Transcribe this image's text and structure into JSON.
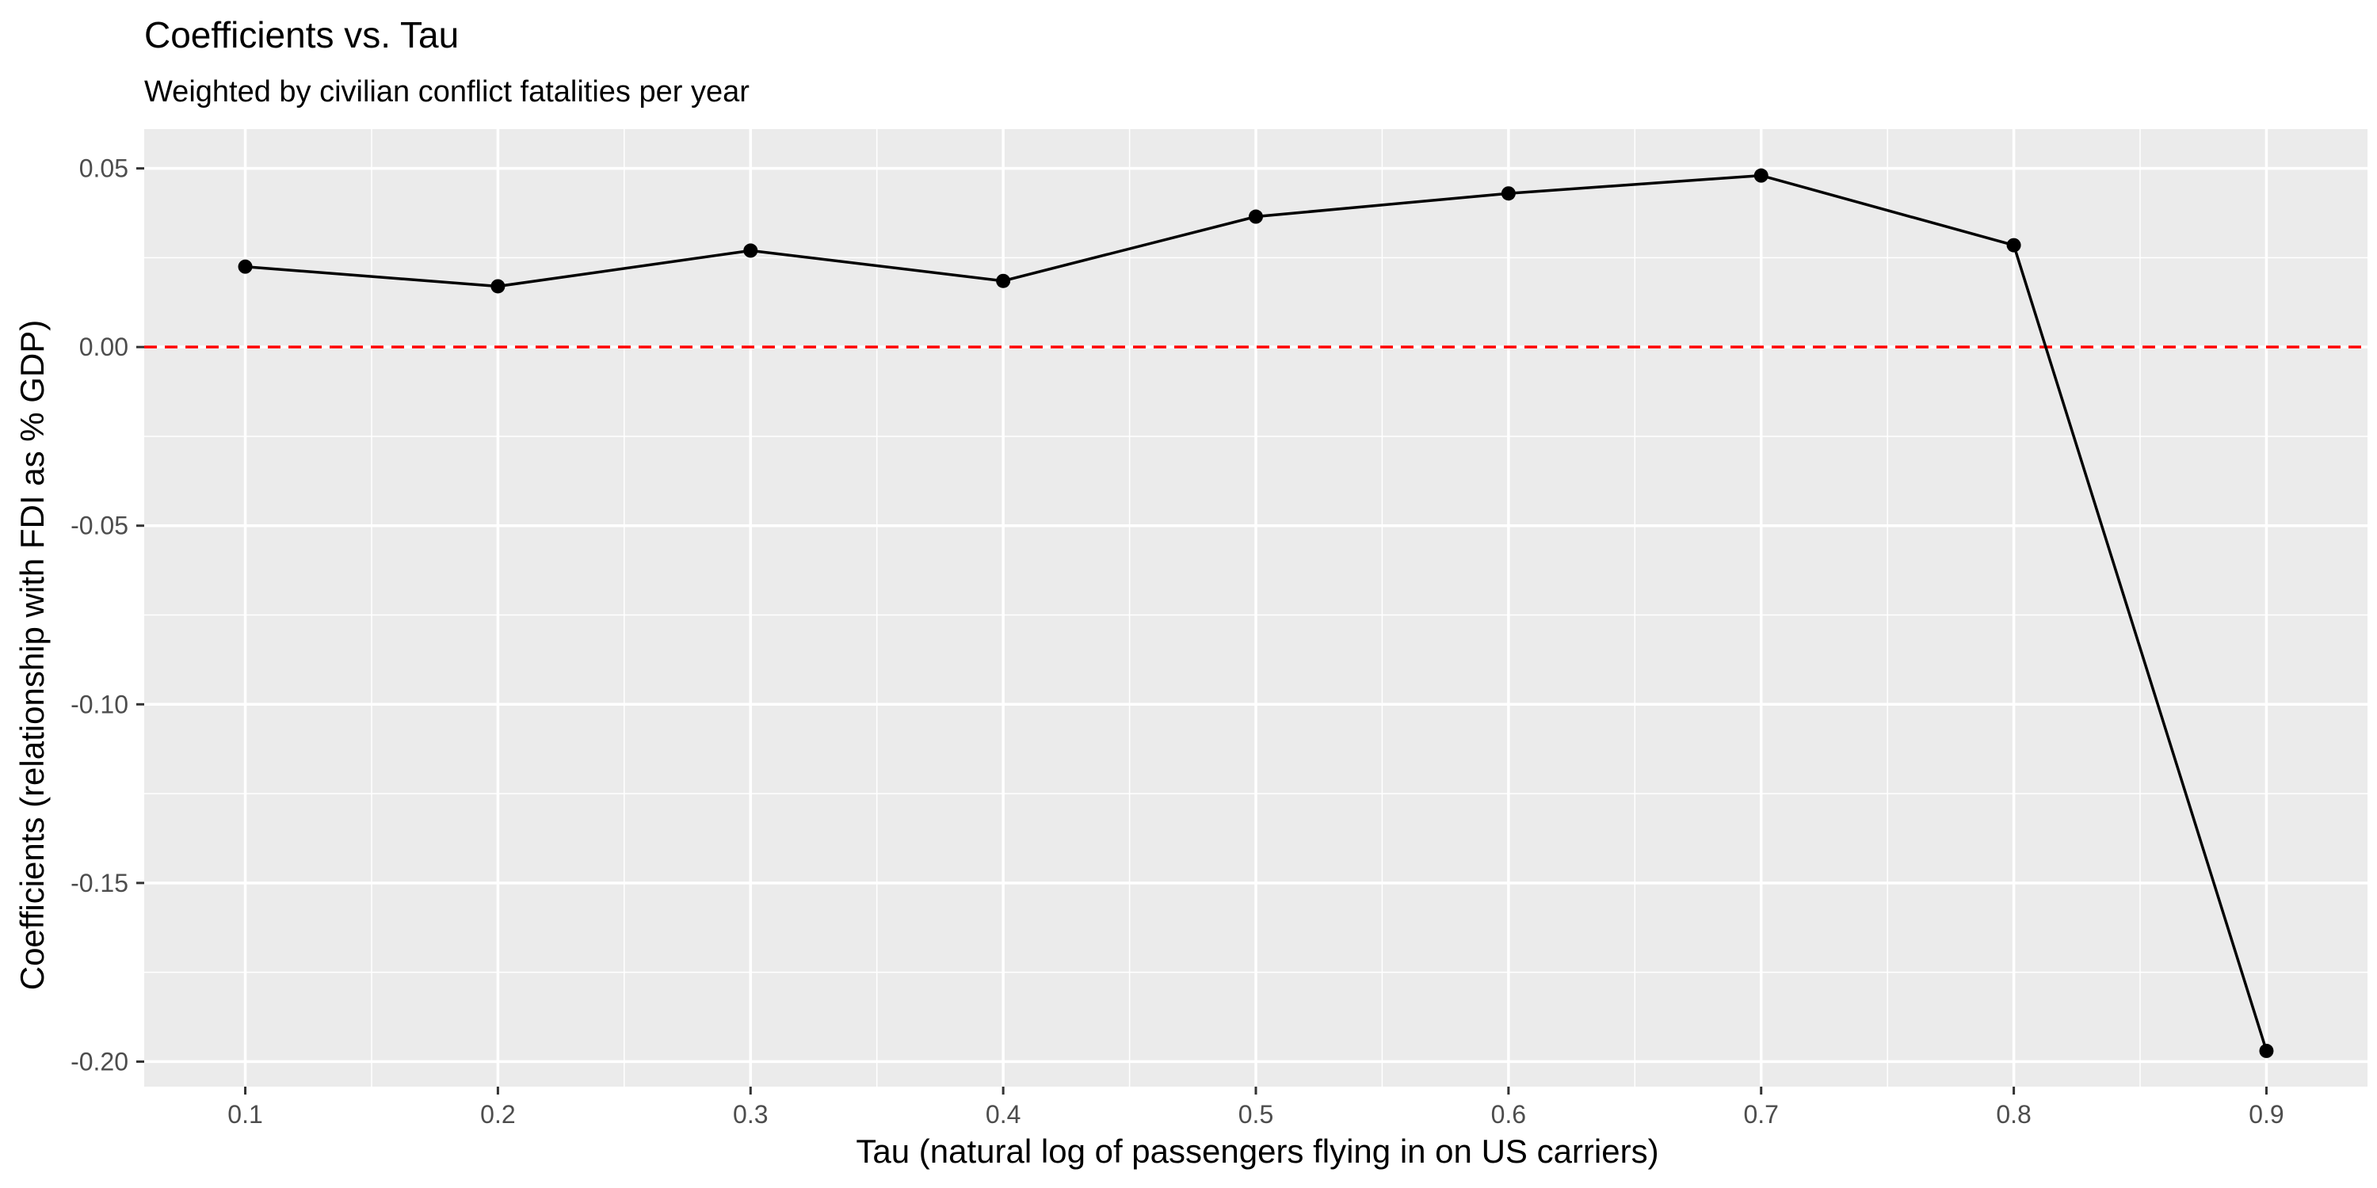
{
  "chart_data": {
    "type": "line",
    "title": "Coefficients vs. Tau",
    "subtitle": "Weighted by civilian conflict fatalities per year",
    "xlabel": "Tau (natural log of passengers flying in on US carriers)",
    "ylabel": "Coefficients (relationship with FDI as % GDP)",
    "x": [
      0.1,
      0.2,
      0.3,
      0.4,
      0.5,
      0.6,
      0.7,
      0.8,
      0.9
    ],
    "series": [
      {
        "values": [
          0.0225,
          0.017,
          0.027,
          0.0185,
          0.0365,
          0.043,
          0.048,
          0.0285,
          -0.197
        ]
      }
    ],
    "xlim": [
      0.06,
      0.94
    ],
    "ylim": [
      -0.207,
      0.061
    ],
    "x_ticks": [
      0.1,
      0.2,
      0.3,
      0.4,
      0.5,
      0.6,
      0.7,
      0.8,
      0.9
    ],
    "x_tick_labels": [
      "0.1",
      "0.2",
      "0.3",
      "0.4",
      "0.5",
      "0.6",
      "0.7",
      "0.8",
      "0.9"
    ],
    "y_ticks": [
      0.05,
      0.0,
      -0.05,
      -0.1,
      -0.15,
      -0.2
    ],
    "y_tick_labels": [
      "0.05",
      "0.00",
      "-0.05",
      "-0.10",
      "-0.15",
      "-0.20"
    ],
    "reference_line": {
      "y": 0,
      "color": "#ff0000",
      "style": "dashed"
    },
    "grid": true,
    "panel_color": "#ebebeb",
    "line_color": "#000000"
  }
}
